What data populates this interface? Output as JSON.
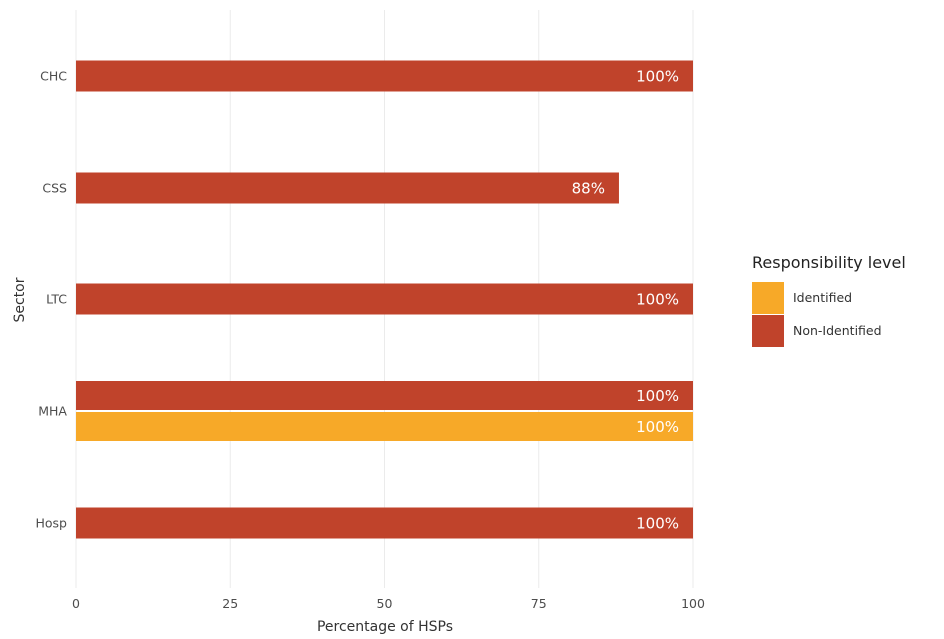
{
  "chart_data": {
    "type": "bar",
    "orientation": "horizontal",
    "categories": [
      "CHC",
      "CSS",
      "LTC",
      "MHA",
      "Hosp"
    ],
    "series": [
      {
        "name": "Non-Identified",
        "color": "#c0432b",
        "values": [
          100,
          88,
          100,
          100,
          100
        ],
        "labels": [
          "100%",
          "88%",
          "100%",
          "100%",
          "100%"
        ]
      },
      {
        "name": "Identified",
        "color": "#f7a928",
        "values": [
          null,
          null,
          null,
          100,
          null
        ],
        "labels": [
          "",
          "",
          "",
          "100%",
          ""
        ]
      }
    ],
    "xlabel": "Percentage of HSPs",
    "ylabel": "Sector",
    "xlim": [
      0,
      100
    ],
    "xticks": [
      0,
      25,
      50,
      75,
      100
    ],
    "grid": true,
    "legend": {
      "title": "Responsibility level",
      "position": "right",
      "items": [
        {
          "label": "Identified",
          "color": "#f7a928"
        },
        {
          "label": "Non-Identified",
          "color": "#c0432b"
        }
      ]
    }
  }
}
